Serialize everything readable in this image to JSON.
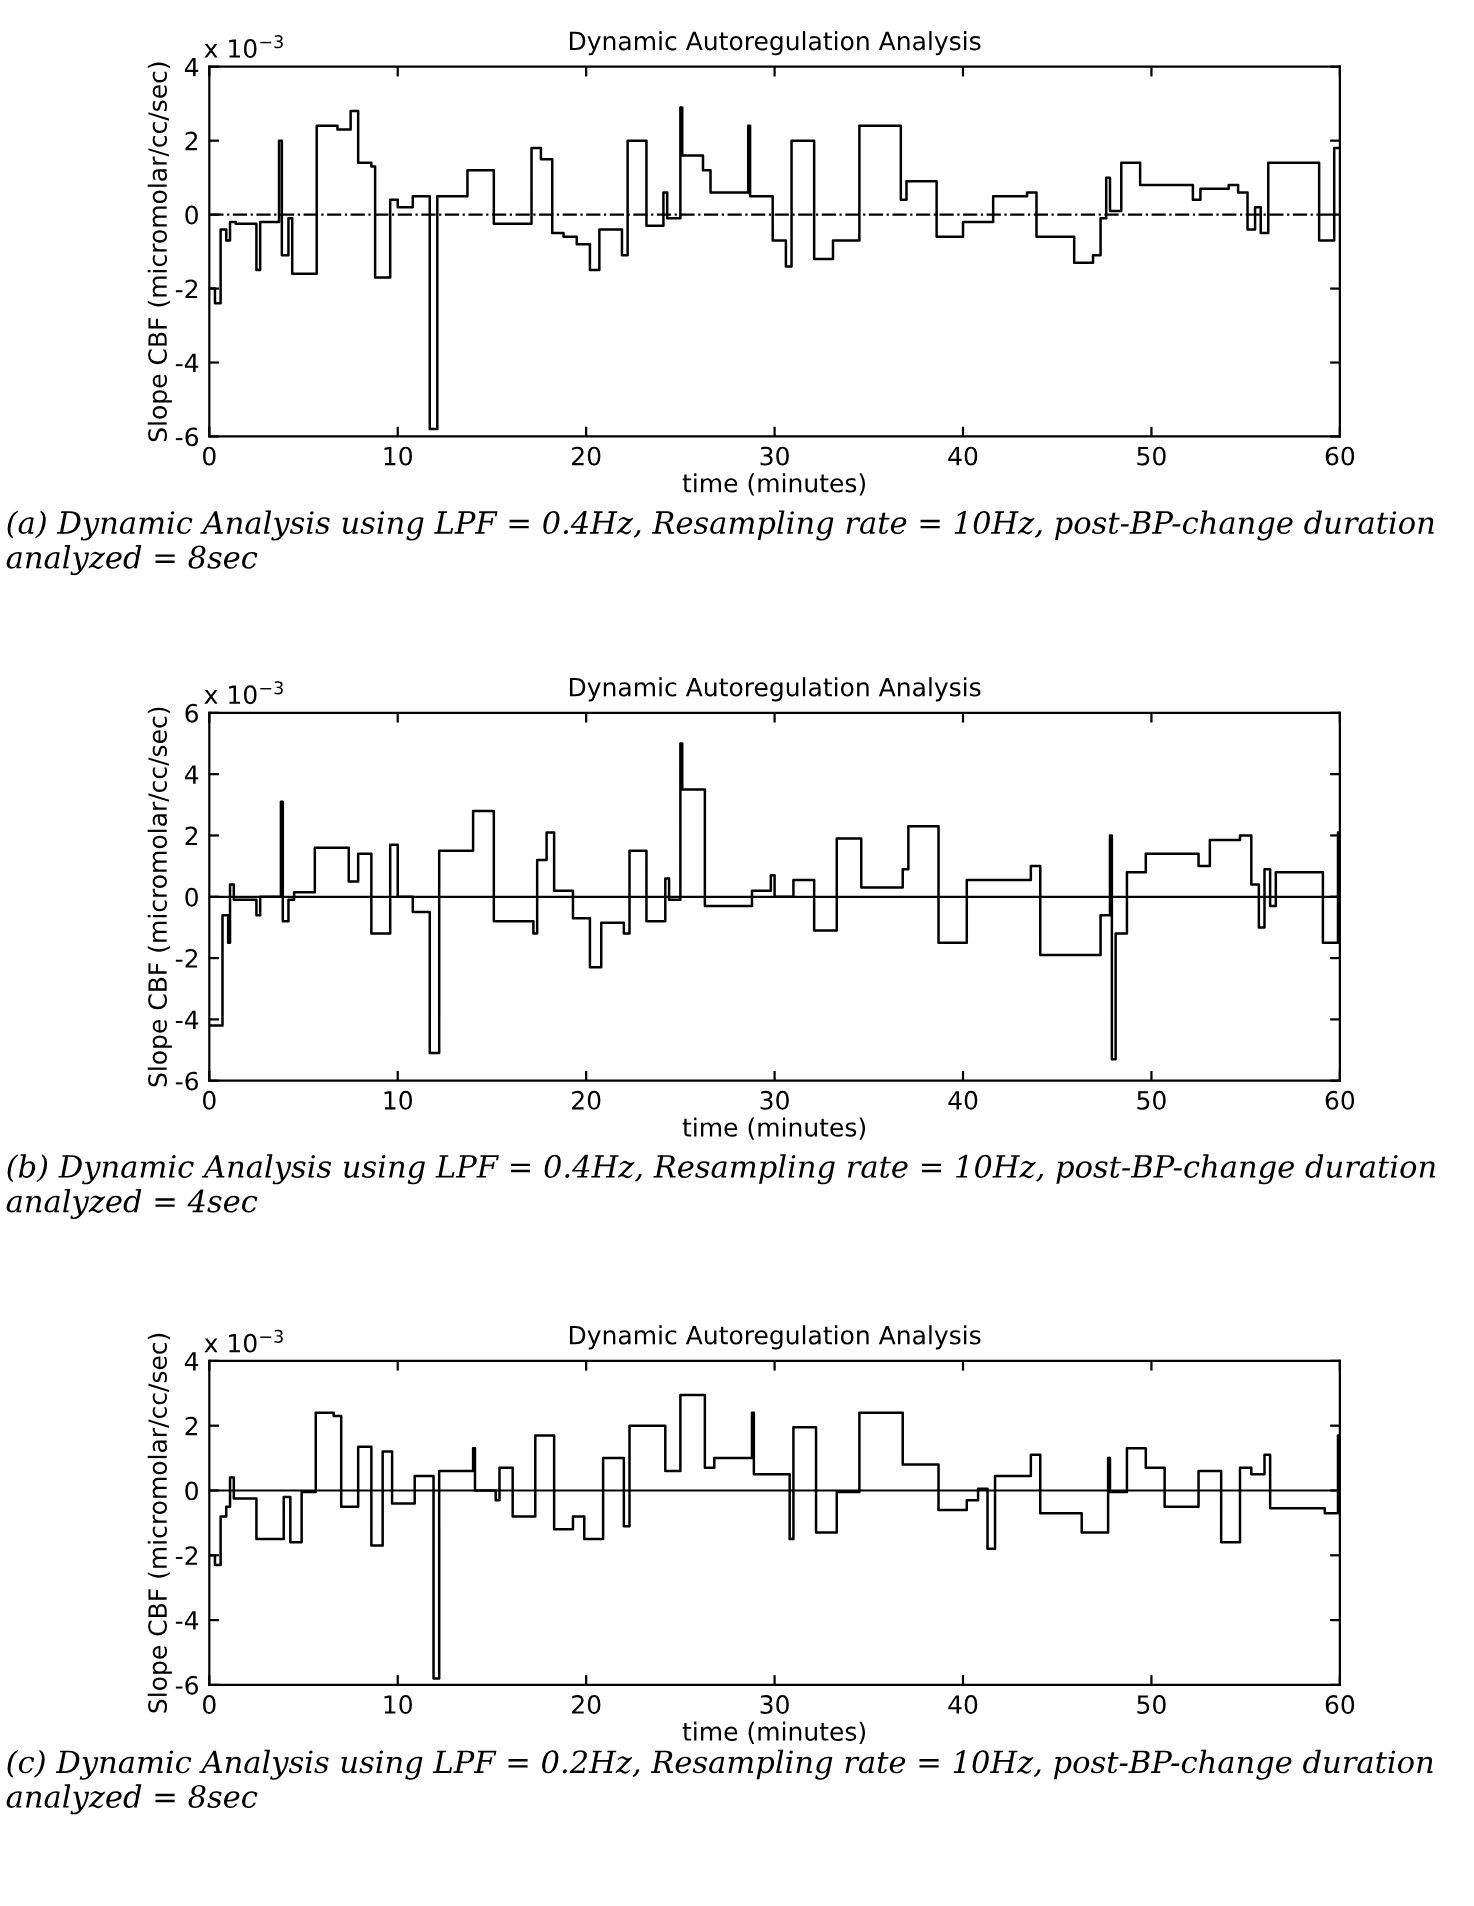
{
  "chart_data": [
    {
      "type": "step",
      "title": "Dynamic Autoregulation Analysis",
      "xlabel": "time (minutes)",
      "ylabel": "Slope CBF (micromolar/cc/sec)",
      "xlim": [
        0,
        60
      ],
      "xticks": [
        0,
        10,
        20,
        30,
        40,
        50,
        60
      ],
      "ylim": [
        -6,
        4
      ],
      "yticks": [
        -6,
        -4,
        -2,
        0,
        2,
        4
      ],
      "grid": false,
      "legend": false,
      "ref_lines": [
        {
          "axis": "y",
          "value": 0,
          "line_style": "dashed",
          "color": "#000000"
        }
      ],
      "annotations": [
        "x 10$^{−3}$",
        "(a) Dynamic Analysis using LPF = 0.4Hz, Resampling rate = 10Hz, post-BP-change duration analyzed = 8sec"
      ],
      "series": [
        {
          "color": "#000000",
          "x": [
            0,
            0.3,
            0.6,
            0.9,
            1.1,
            1.4,
            2.5,
            2.7,
            3.7,
            3.85,
            4.2,
            4.4,
            5.7,
            6.8,
            7.5,
            7.9,
            8.6,
            8.8,
            9.6,
            10.0,
            10.8,
            11.7,
            12.1,
            13.7,
            15.1,
            17.1,
            17.6,
            18.2,
            18.8,
            19.5,
            20.2,
            20.7,
            21.9,
            22.2,
            23.2,
            24.1,
            24.3,
            25.0,
            25.1,
            26.2,
            26.6,
            28.6,
            28.7,
            29.6,
            29.9,
            30.6,
            30.9,
            32.1,
            33.1,
            34.5,
            36.7,
            37.0,
            38.6,
            40.0,
            41.6,
            43.4,
            43.9,
            45.9,
            46.9,
            47.3,
            47.6,
            47.8,
            48.4,
            49.4,
            52.2,
            52.6,
            54.1,
            54.6,
            55.1,
            55.5,
            55.8,
            56.2,
            58.9,
            59.7,
            60
          ],
          "values": [
            -2.0,
            -2.4,
            -0.4,
            -0.7,
            -0.2,
            -0.25,
            -1.5,
            -0.2,
            2.0,
            -1.1,
            -0.1,
            -1.6,
            2.4,
            2.3,
            2.8,
            1.4,
            1.3,
            -1.7,
            0.4,
            0.2,
            0.5,
            -5.8,
            0.5,
            1.2,
            -0.25,
            1.8,
            1.5,
            -0.5,
            -0.6,
            -0.8,
            -1.5,
            -0.4,
            -1.1,
            2.0,
            -0.3,
            0.6,
            -0.1,
            2.9,
            1.6,
            1.2,
            0.6,
            2.4,
            0.5,
            0.5,
            -0.7,
            -1.4,
            2.0,
            -1.2,
            -0.7,
            2.4,
            0.4,
            0.9,
            -0.6,
            -0.2,
            0.5,
            0.6,
            -0.6,
            -1.3,
            -1.1,
            -0.1,
            1.0,
            0.1,
            1.4,
            0.8,
            0.4,
            0.7,
            0.8,
            0.6,
            -0.4,
            0.2,
            -0.5,
            1.4,
            -0.7,
            1.8,
            1.8
          ]
        }
      ]
    },
    {
      "type": "step",
      "title": "Dynamic Autoregulation Analysis",
      "xlabel": "time (minutes)",
      "ylabel": "Slope CBF (micromolar/cc/sec)",
      "xlim": [
        0,
        60
      ],
      "xticks": [
        0,
        10,
        20,
        30,
        40,
        50,
        60
      ],
      "ylim": [
        -6,
        6
      ],
      "yticks": [
        -6,
        -4,
        -2,
        0,
        2,
        4,
        6
      ],
      "grid": false,
      "legend": false,
      "ref_lines": [
        {
          "axis": "y",
          "value": 0,
          "line_style": "solid",
          "color": "#000000"
        }
      ],
      "annotations": [
        "x 10$^{−3}$",
        "(b) Dynamic Analysis using LPF = 0.4Hz, Resampling rate = 10Hz, post-BP-change duration analyzed = 4sec"
      ],
      "series": [
        {
          "color": "#000000",
          "x": [
            0,
            0.7,
            1.0,
            1.1,
            1.3,
            2.5,
            2.7,
            3.8,
            3.9,
            4.2,
            4.5,
            5.6,
            7.4,
            7.9,
            8.6,
            9.6,
            10.0,
            10.8,
            11.7,
            12.2,
            14.0,
            15.1,
            17.2,
            17.4,
            17.9,
            18.3,
            19.3,
            20.2,
            20.8,
            22.0,
            22.3,
            23.2,
            24.2,
            24.4,
            25.0,
            25.1,
            26.3,
            28.8,
            29.8,
            30.0,
            31.0,
            32.1,
            33.3,
            34.6,
            36.8,
            37.1,
            38.7,
            40.2,
            43.6,
            44.1,
            47.3,
            47.8,
            47.9,
            48.1,
            48.7,
            49.7,
            52.5,
            53.1,
            54.7,
            55.3,
            55.7,
            56.0,
            56.3,
            56.6,
            59.1,
            59.9,
            60
          ],
          "values": [
            -4.2,
            -0.6,
            -1.5,
            0.4,
            -0.1,
            -0.6,
            0.0,
            3.1,
            -0.8,
            -0.1,
            0.15,
            1.6,
            0.5,
            1.4,
            -1.2,
            1.7,
            0.0,
            -0.5,
            -5.1,
            1.5,
            2.8,
            -0.8,
            -1.2,
            1.2,
            2.1,
            0.2,
            -0.7,
            -2.3,
            -0.85,
            -1.2,
            1.5,
            -0.8,
            0.6,
            -0.1,
            5.0,
            3.5,
            -0.3,
            0.2,
            0.7,
            0.0,
            0.55,
            -1.1,
            1.9,
            0.3,
            0.9,
            2.3,
            -1.5,
            0.55,
            1.0,
            -1.9,
            -0.6,
            2.0,
            -5.3,
            -1.2,
            0.8,
            1.4,
            1.0,
            1.85,
            2.0,
            0.4,
            -1.0,
            0.9,
            -0.3,
            0.8,
            -1.5,
            2.1,
            2.1
          ]
        }
      ]
    },
    {
      "type": "step",
      "title": "Dynamic Autoregulation Analysis",
      "xlabel": "time (minutes)",
      "ylabel": "Slope CBF (micromolar/cc/sec)",
      "xlim": [
        0,
        60
      ],
      "xticks": [
        0,
        10,
        20,
        30,
        40,
        50,
        60
      ],
      "ylim": [
        -6,
        4
      ],
      "yticks": [
        -6,
        -4,
        -2,
        0,
        2,
        4
      ],
      "grid": false,
      "legend": false,
      "ref_lines": [
        {
          "axis": "y",
          "value": 0,
          "line_style": "solid",
          "color": "#000000"
        }
      ],
      "annotations": [
        "x 10$^{−3}$",
        "(c) Dynamic Analysis using LPF = 0.2Hz, Resampling rate = 10Hz, post-BP-change duration analyzed = 8sec"
      ],
      "series": [
        {
          "color": "#000000",
          "x": [
            0,
            0.3,
            0.6,
            0.9,
            1.1,
            1.3,
            2.5,
            3.95,
            4.3,
            4.9,
            5.65,
            6.6,
            7.0,
            7.9,
            8.6,
            9.2,
            9.7,
            10.9,
            11.9,
            12.2,
            14.0,
            14.1,
            15.2,
            15.4,
            16.1,
            17.3,
            18.3,
            19.3,
            19.9,
            20.9,
            22.0,
            22.3,
            24.2,
            25.0,
            26.3,
            26.8,
            28.8,
            28.9,
            30.8,
            31.0,
            32.2,
            33.3,
            34.5,
            36.8,
            38.7,
            40.2,
            40.8,
            41.3,
            41.7,
            43.6,
            44.1,
            46.3,
            47.7,
            47.8,
            48.7,
            49.7,
            50.7,
            52.5,
            53.7,
            54.7,
            55.3,
            56.0,
            56.3,
            59.2,
            59.9,
            60
          ],
          "values": [
            -2.0,
            -2.3,
            -0.8,
            -0.5,
            0.4,
            -0.25,
            -1.5,
            -0.2,
            -1.6,
            -0.05,
            2.4,
            2.3,
            -0.5,
            1.35,
            -1.7,
            1.2,
            -0.4,
            0.45,
            -5.8,
            0.6,
            1.3,
            0.0,
            -0.3,
            0.7,
            -0.8,
            1.7,
            -1.2,
            -0.8,
            -1.5,
            1.0,
            -1.1,
            2.0,
            0.6,
            2.95,
            0.7,
            1.0,
            2.4,
            0.5,
            -1.5,
            1.95,
            -1.3,
            -0.05,
            2.4,
            0.8,
            -0.6,
            -0.3,
            0.05,
            -1.8,
            0.45,
            1.1,
            -0.7,
            -1.3,
            1.0,
            -0.05,
            1.3,
            0.7,
            -0.5,
            0.6,
            -1.6,
            0.7,
            0.5,
            1.1,
            -0.55,
            -0.7,
            1.7,
            1.7
          ]
        }
      ]
    }
  ]
}
